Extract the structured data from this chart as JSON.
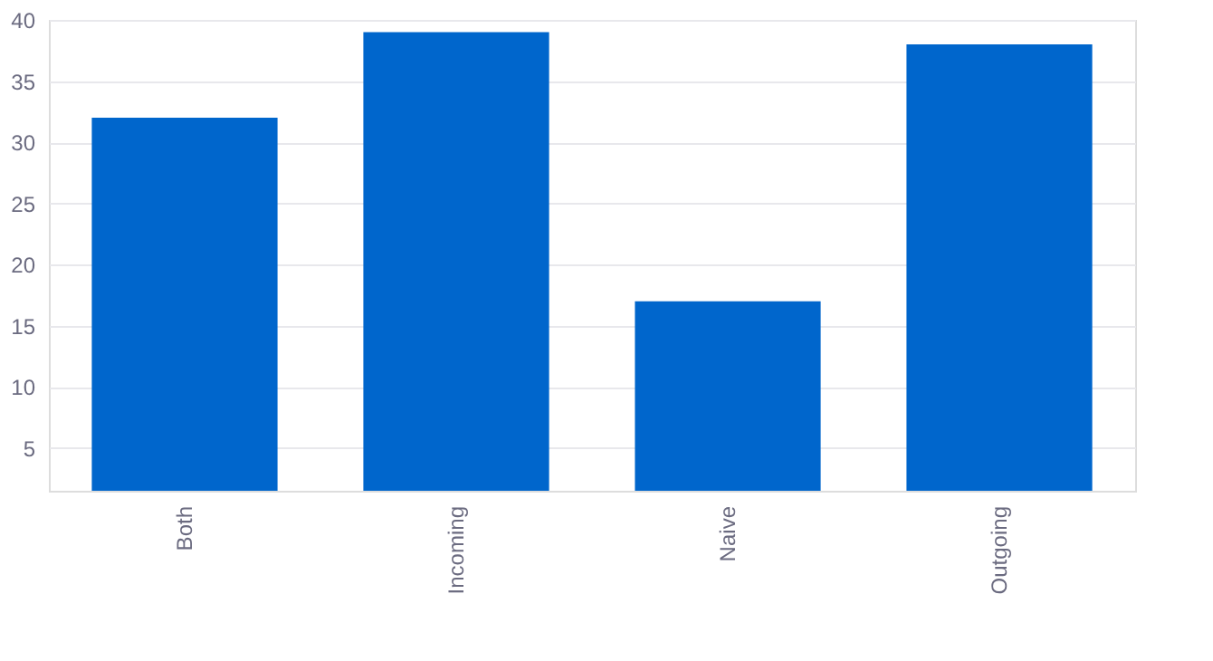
{
  "chart_data": {
    "type": "bar",
    "categories": [
      "Both",
      "Incoming",
      "Naive",
      "Outgoing"
    ],
    "values": [
      32,
      39,
      17,
      38
    ],
    "color": "#0066cc",
    "ylim": [
      1.5,
      40
    ],
    "yticks": [
      5,
      10,
      15,
      20,
      25,
      30,
      35,
      40
    ],
    "grid": "y"
  }
}
